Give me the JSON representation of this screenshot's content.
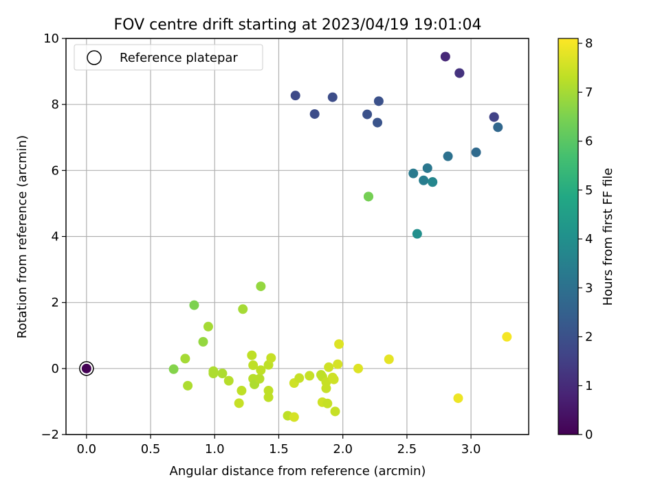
{
  "chart_data": {
    "type": "scatter",
    "title": "FOV centre drift starting at 2023/04/19 19:01:04",
    "xlabel": "Angular distance from reference (arcmin)",
    "ylabel": "Rotation from reference (arcmin)",
    "xlim": [
      -0.16,
      3.45
    ],
    "ylim": [
      -2,
      10
    ],
    "xticks": [
      "0.0",
      "0.5",
      "1.0",
      "1.5",
      "2.0",
      "2.5",
      "3.0"
    ],
    "yticks": [
      "−2",
      "0",
      "2",
      "4",
      "6",
      "8",
      "10"
    ],
    "grid": true,
    "legend": {
      "position": "upper-left",
      "entries": [
        "Reference platepar"
      ]
    },
    "colorbar": {
      "label": "Hours from first FF file",
      "range": [
        0,
        8.1
      ],
      "colormap": "viridis",
      "ticks": [
        "0",
        "1",
        "2",
        "3",
        "4",
        "5",
        "6",
        "7",
        "8"
      ]
    },
    "reference_point": {
      "x": 0.0,
      "y": 0.0,
      "c": 0.0
    },
    "points": [
      {
        "x": 2.8,
        "y": 9.45,
        "c": 0.9
      },
      {
        "x": 2.91,
        "y": 8.95,
        "c": 1.1
      },
      {
        "x": 2.91,
        "y": 8.95,
        "c": 1.2
      },
      {
        "x": 1.63,
        "y": 8.27,
        "c": 1.8
      },
      {
        "x": 1.92,
        "y": 8.22,
        "c": 1.9
      },
      {
        "x": 2.28,
        "y": 8.1,
        "c": 2.0
      },
      {
        "x": 1.78,
        "y": 7.71,
        "c": 1.9
      },
      {
        "x": 2.19,
        "y": 7.7,
        "c": 2.0
      },
      {
        "x": 2.27,
        "y": 7.45,
        "c": 2.1
      },
      {
        "x": 3.18,
        "y": 7.62,
        "c": 1.5
      },
      {
        "x": 3.18,
        "y": 7.62,
        "c": 1.6
      },
      {
        "x": 3.21,
        "y": 7.31,
        "c": 2.7
      },
      {
        "x": 3.04,
        "y": 6.55,
        "c": 2.8
      },
      {
        "x": 2.82,
        "y": 6.43,
        "c": 3.0
      },
      {
        "x": 2.66,
        "y": 6.07,
        "c": 3.2
      },
      {
        "x": 2.55,
        "y": 5.91,
        "c": 3.3
      },
      {
        "x": 2.63,
        "y": 5.7,
        "c": 3.4
      },
      {
        "x": 2.7,
        "y": 5.65,
        "c": 3.6
      },
      {
        "x": 2.7,
        "y": 5.65,
        "c": 3.7
      },
      {
        "x": 2.58,
        "y": 4.08,
        "c": 4.0
      },
      {
        "x": 2.2,
        "y": 5.21,
        "c": 6.3
      },
      {
        "x": 2.2,
        "y": 5.21,
        "c": 6.4
      },
      {
        "x": 1.36,
        "y": 2.49,
        "c": 6.8
      },
      {
        "x": 0.84,
        "y": 1.92,
        "c": 6.5
      },
      {
        "x": 1.22,
        "y": 1.8,
        "c": 7.0
      },
      {
        "x": 0.95,
        "y": 1.27,
        "c": 7.0
      },
      {
        "x": 0.91,
        "y": 0.81,
        "c": 6.8
      },
      {
        "x": 0.77,
        "y": 0.3,
        "c": 7.0
      },
      {
        "x": 0.68,
        "y": -0.02,
        "c": 6.6
      },
      {
        "x": 0.79,
        "y": -0.52,
        "c": 7.1
      },
      {
        "x": 0.99,
        "y": -0.08,
        "c": 7.1
      },
      {
        "x": 0.99,
        "y": -0.15,
        "c": 7.1
      },
      {
        "x": 1.06,
        "y": -0.15,
        "c": 7.1
      },
      {
        "x": 1.11,
        "y": -0.37,
        "c": 7.2
      },
      {
        "x": 1.19,
        "y": -1.05,
        "c": 7.4
      },
      {
        "x": 1.21,
        "y": -0.67,
        "c": 7.3
      },
      {
        "x": 1.29,
        "y": 0.4,
        "c": 7.3
      },
      {
        "x": 1.3,
        "y": 0.1,
        "c": 7.3
      },
      {
        "x": 1.3,
        "y": -0.31,
        "c": 7.2
      },
      {
        "x": 1.31,
        "y": -0.48,
        "c": 7.1
      },
      {
        "x": 1.35,
        "y": -0.31,
        "c": 7.2
      },
      {
        "x": 1.36,
        "y": -0.05,
        "c": 7.3
      },
      {
        "x": 1.42,
        "y": 0.11,
        "c": 7.3
      },
      {
        "x": 1.44,
        "y": 0.32,
        "c": 7.4
      },
      {
        "x": 1.42,
        "y": -0.67,
        "c": 7.3
      },
      {
        "x": 1.42,
        "y": -0.87,
        "c": 7.3
      },
      {
        "x": 1.57,
        "y": -1.43,
        "c": 7.3
      },
      {
        "x": 1.62,
        "y": -1.47,
        "c": 7.6
      },
      {
        "x": 1.62,
        "y": -0.44,
        "c": 7.5
      },
      {
        "x": 1.66,
        "y": -0.29,
        "c": 7.4
      },
      {
        "x": 1.74,
        "y": -0.22,
        "c": 7.4
      },
      {
        "x": 1.83,
        "y": -0.19,
        "c": 7.3
      },
      {
        "x": 1.84,
        "y": -0.25,
        "c": 7.3
      },
      {
        "x": 1.84,
        "y": -1.02,
        "c": 7.5
      },
      {
        "x": 1.88,
        "y": -1.06,
        "c": 7.4
      },
      {
        "x": 1.87,
        "y": -0.41,
        "c": 7.4
      },
      {
        "x": 1.87,
        "y": -0.6,
        "c": 7.4
      },
      {
        "x": 1.89,
        "y": 0.04,
        "c": 7.5
      },
      {
        "x": 1.92,
        "y": -0.27,
        "c": 7.5
      },
      {
        "x": 1.93,
        "y": -0.33,
        "c": 7.5
      },
      {
        "x": 1.94,
        "y": -1.3,
        "c": 7.4
      },
      {
        "x": 1.96,
        "y": 0.13,
        "c": 7.6
      },
      {
        "x": 1.97,
        "y": 0.74,
        "c": 7.7
      },
      {
        "x": 2.12,
        "y": 0.0,
        "c": 7.7
      },
      {
        "x": 2.36,
        "y": 0.28,
        "c": 7.8
      },
      {
        "x": 2.9,
        "y": -0.9,
        "c": 7.9
      },
      {
        "x": 3.28,
        "y": 0.96,
        "c": 8.0
      }
    ]
  }
}
